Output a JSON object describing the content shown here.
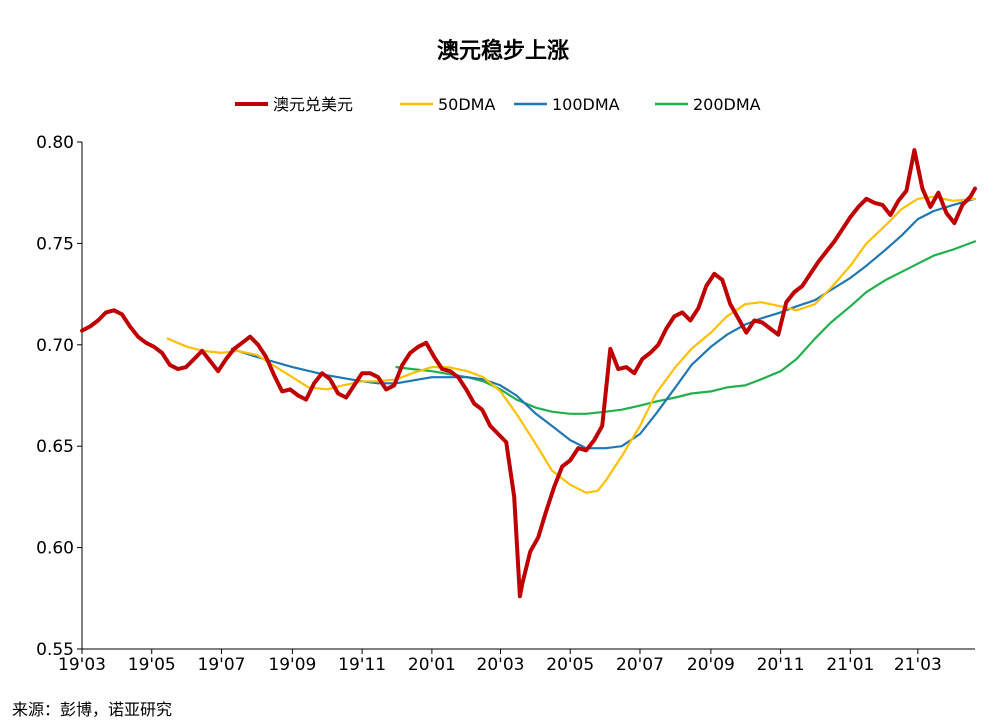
{
  "chart_data": {
    "type": "line",
    "title": "澳元稳步上涨",
    "xlabel": "",
    "ylabel": "",
    "ylim": [
      0.55,
      0.8
    ],
    "yticks": [
      "0.55",
      "0.60",
      "0.65",
      "0.70",
      "0.75",
      "0.80"
    ],
    "xlim": [
      "2019-03-01",
      "2021-04-20"
    ],
    "xticks": [
      {
        "label": "19'03",
        "date": "2019-03-01"
      },
      {
        "label": "19'05",
        "date": "2019-05-01"
      },
      {
        "label": "19'07",
        "date": "2019-07-01"
      },
      {
        "label": "19'09",
        "date": "2019-09-01"
      },
      {
        "label": "19'11",
        "date": "2019-11-01"
      },
      {
        "label": "20'01",
        "date": "2020-01-01"
      },
      {
        "label": "20'03",
        "date": "2020-03-01"
      },
      {
        "label": "20'05",
        "date": "2020-05-01"
      },
      {
        "label": "20'07",
        "date": "2020-07-01"
      },
      {
        "label": "20'09",
        "date": "2020-09-01"
      },
      {
        "label": "20'11",
        "date": "2020-11-01"
      },
      {
        "label": "21'01",
        "date": "2021-01-01"
      },
      {
        "label": "21'03",
        "date": "2021-03-01"
      }
    ],
    "legend_position": "top",
    "grid": false,
    "series": [
      {
        "name": "澳元兑美元",
        "color": "#c00000",
        "points": [
          [
            "2019-03-01",
            0.707
          ],
          [
            "2019-03-08",
            0.709
          ],
          [
            "2019-03-15",
            0.712
          ],
          [
            "2019-03-22",
            0.716
          ],
          [
            "2019-03-29",
            0.717
          ],
          [
            "2019-04-05",
            0.715
          ],
          [
            "2019-04-12",
            0.709
          ],
          [
            "2019-04-19",
            0.704
          ],
          [
            "2019-04-26",
            0.701
          ],
          [
            "2019-05-03",
            0.699
          ],
          [
            "2019-05-10",
            0.696
          ],
          [
            "2019-05-17",
            0.69
          ],
          [
            "2019-05-24",
            0.688
          ],
          [
            "2019-05-31",
            0.689
          ],
          [
            "2019-06-07",
            0.693
          ],
          [
            "2019-06-14",
            0.697
          ],
          [
            "2019-06-21",
            0.692
          ],
          [
            "2019-06-28",
            0.687
          ],
          [
            "2019-07-05",
            0.693
          ],
          [
            "2019-07-12",
            0.698
          ],
          [
            "2019-07-19",
            0.701
          ],
          [
            "2019-07-26",
            0.704
          ],
          [
            "2019-08-02",
            0.7
          ],
          [
            "2019-08-09",
            0.694
          ],
          [
            "2019-08-16",
            0.685
          ],
          [
            "2019-08-23",
            0.677
          ],
          [
            "2019-08-30",
            0.678
          ],
          [
            "2019-09-06",
            0.675
          ],
          [
            "2019-09-13",
            0.673
          ],
          [
            "2019-09-20",
            0.681
          ],
          [
            "2019-09-27",
            0.686
          ],
          [
            "2019-10-04",
            0.683
          ],
          [
            "2019-10-11",
            0.676
          ],
          [
            "2019-10-18",
            0.674
          ],
          [
            "2019-10-25",
            0.68
          ],
          [
            "2019-11-01",
            0.686
          ],
          [
            "2019-11-08",
            0.686
          ],
          [
            "2019-11-15",
            0.684
          ],
          [
            "2019-11-22",
            0.678
          ],
          [
            "2019-11-29",
            0.68
          ],
          [
            "2019-12-06",
            0.69
          ],
          [
            "2019-12-13",
            0.696
          ],
          [
            "2019-12-20",
            0.699
          ],
          [
            "2019-12-27",
            0.701
          ],
          [
            "2020-01-03",
            0.694
          ],
          [
            "2020-01-10",
            0.688
          ],
          [
            "2020-01-17",
            0.687
          ],
          [
            "2020-01-24",
            0.684
          ],
          [
            "2020-01-31",
            0.678
          ],
          [
            "2020-02-07",
            0.671
          ],
          [
            "2020-02-14",
            0.668
          ],
          [
            "2020-02-21",
            0.66
          ],
          [
            "2020-02-28",
            0.656
          ],
          [
            "2020-03-06",
            0.652
          ],
          [
            "2020-03-13",
            0.625
          ],
          [
            "2020-03-18",
            0.576
          ],
          [
            "2020-03-20",
            0.582
          ],
          [
            "2020-03-27",
            0.598
          ],
          [
            "2020-04-03",
            0.605
          ],
          [
            "2020-04-10",
            0.618
          ],
          [
            "2020-04-17",
            0.63
          ],
          [
            "2020-04-24",
            0.64
          ],
          [
            "2020-05-01",
            0.643
          ],
          [
            "2020-05-08",
            0.649
          ],
          [
            "2020-05-15",
            0.648
          ],
          [
            "2020-05-22",
            0.653
          ],
          [
            "2020-05-29",
            0.66
          ],
          [
            "2020-06-05",
            0.698
          ],
          [
            "2020-06-12",
            0.688
          ],
          [
            "2020-06-19",
            0.689
          ],
          [
            "2020-06-26",
            0.686
          ],
          [
            "2020-07-03",
            0.693
          ],
          [
            "2020-07-10",
            0.696
          ],
          [
            "2020-07-17",
            0.7
          ],
          [
            "2020-07-24",
            0.708
          ],
          [
            "2020-07-31",
            0.714
          ],
          [
            "2020-08-07",
            0.716
          ],
          [
            "2020-08-14",
            0.712
          ],
          [
            "2020-08-21",
            0.718
          ],
          [
            "2020-08-28",
            0.729
          ],
          [
            "2020-09-04",
            0.735
          ],
          [
            "2020-09-11",
            0.732
          ],
          [
            "2020-09-18",
            0.72
          ],
          [
            "2020-09-25",
            0.713
          ],
          [
            "2020-10-02",
            0.706
          ],
          [
            "2020-10-09",
            0.712
          ],
          [
            "2020-10-16",
            0.711
          ],
          [
            "2020-10-23",
            0.708
          ],
          [
            "2020-10-30",
            0.705
          ],
          [
            "2020-11-06",
            0.721
          ],
          [
            "2020-11-13",
            0.726
          ],
          [
            "2020-11-20",
            0.729
          ],
          [
            "2020-11-27",
            0.735
          ],
          [
            "2020-12-04",
            0.741
          ],
          [
            "2020-12-11",
            0.746
          ],
          [
            "2020-12-18",
            0.751
          ],
          [
            "2020-12-25",
            0.757
          ],
          [
            "2021-01-01",
            0.763
          ],
          [
            "2021-01-08",
            0.768
          ],
          [
            "2021-01-15",
            0.772
          ],
          [
            "2021-01-22",
            0.77
          ],
          [
            "2021-01-29",
            0.769
          ],
          [
            "2021-02-05",
            0.764
          ],
          [
            "2021-02-12",
            0.771
          ],
          [
            "2021-02-19",
            0.776
          ],
          [
            "2021-02-26",
            0.796
          ],
          [
            "2021-03-05",
            0.777
          ],
          [
            "2021-03-12",
            0.768
          ],
          [
            "2021-03-19",
            0.775
          ],
          [
            "2021-03-26",
            0.765
          ],
          [
            "2021-04-02",
            0.76
          ],
          [
            "2021-04-09",
            0.769
          ],
          [
            "2021-04-16",
            0.773
          ],
          [
            "2021-04-20",
            0.777
          ]
        ]
      },
      {
        "name": "50DMA",
        "color": "#ffc000",
        "points": [
          [
            "2019-05-15",
            0.703
          ],
          [
            "2019-06-01",
            0.699
          ],
          [
            "2019-06-15",
            0.697
          ],
          [
            "2019-07-01",
            0.696
          ],
          [
            "2019-07-15",
            0.697
          ],
          [
            "2019-08-01",
            0.695
          ],
          [
            "2019-08-15",
            0.69
          ],
          [
            "2019-09-01",
            0.684
          ],
          [
            "2019-09-15",
            0.679
          ],
          [
            "2019-10-01",
            0.678
          ],
          [
            "2019-10-15",
            0.68
          ],
          [
            "2019-11-01",
            0.682
          ],
          [
            "2019-11-15",
            0.682
          ],
          [
            "2019-12-01",
            0.683
          ],
          [
            "2019-12-15",
            0.686
          ],
          [
            "2020-01-01",
            0.689
          ],
          [
            "2020-01-15",
            0.689
          ],
          [
            "2020-02-01",
            0.687
          ],
          [
            "2020-02-15",
            0.684
          ],
          [
            "2020-03-01",
            0.677
          ],
          [
            "2020-03-15",
            0.666
          ],
          [
            "2020-04-01",
            0.651
          ],
          [
            "2020-04-15",
            0.638
          ],
          [
            "2020-05-01",
            0.631
          ],
          [
            "2020-05-15",
            0.627
          ],
          [
            "2020-05-25",
            0.628
          ],
          [
            "2020-06-01",
            0.633
          ],
          [
            "2020-06-15",
            0.645
          ],
          [
            "2020-07-01",
            0.66
          ],
          [
            "2020-07-15",
            0.676
          ],
          [
            "2020-08-01",
            0.689
          ],
          [
            "2020-08-15",
            0.698
          ],
          [
            "2020-09-01",
            0.706
          ],
          [
            "2020-09-15",
            0.714
          ],
          [
            "2020-10-01",
            0.72
          ],
          [
            "2020-10-15",
            0.721
          ],
          [
            "2020-11-01",
            0.719
          ],
          [
            "2020-11-15",
            0.717
          ],
          [
            "2020-12-01",
            0.72
          ],
          [
            "2020-12-15",
            0.728
          ],
          [
            "2021-01-01",
            0.739
          ],
          [
            "2021-01-15",
            0.75
          ],
          [
            "2021-02-01",
            0.759
          ],
          [
            "2021-02-15",
            0.767
          ],
          [
            "2021-03-01",
            0.772
          ],
          [
            "2021-03-15",
            0.773
          ],
          [
            "2021-04-01",
            0.771
          ],
          [
            "2021-04-20",
            0.772
          ]
        ]
      },
      {
        "name": "100DMA",
        "color": "#1f77b4",
        "points": [
          [
            "2019-07-10",
            0.698
          ],
          [
            "2019-08-01",
            0.694
          ],
          [
            "2019-09-01",
            0.689
          ],
          [
            "2019-10-01",
            0.685
          ],
          [
            "2019-11-01",
            0.682
          ],
          [
            "2019-11-15",
            0.681
          ],
          [
            "2019-12-01",
            0.681
          ],
          [
            "2020-01-01",
            0.684
          ],
          [
            "2020-02-01",
            0.684
          ],
          [
            "2020-02-15",
            0.683
          ],
          [
            "2020-03-01",
            0.68
          ],
          [
            "2020-03-15",
            0.675
          ],
          [
            "2020-04-01",
            0.666
          ],
          [
            "2020-04-15",
            0.66
          ],
          [
            "2020-05-01",
            0.653
          ],
          [
            "2020-05-15",
            0.649
          ],
          [
            "2020-06-01",
            0.649
          ],
          [
            "2020-06-15",
            0.65
          ],
          [
            "2020-07-01",
            0.656
          ],
          [
            "2020-07-15",
            0.666
          ],
          [
            "2020-08-01",
            0.679
          ],
          [
            "2020-08-15",
            0.69
          ],
          [
            "2020-09-01",
            0.699
          ],
          [
            "2020-09-15",
            0.705
          ],
          [
            "2020-10-01",
            0.71
          ],
          [
            "2020-10-15",
            0.713
          ],
          [
            "2020-11-01",
            0.716
          ],
          [
            "2020-11-15",
            0.719
          ],
          [
            "2020-12-01",
            0.722
          ],
          [
            "2020-12-15",
            0.727
          ],
          [
            "2021-01-01",
            0.733
          ],
          [
            "2021-01-15",
            0.739
          ],
          [
            "2021-02-01",
            0.747
          ],
          [
            "2021-02-15",
            0.754
          ],
          [
            "2021-03-01",
            0.762
          ],
          [
            "2021-03-15",
            0.766
          ],
          [
            "2021-04-01",
            0.769
          ],
          [
            "2021-04-20",
            0.772
          ]
        ]
      },
      {
        "name": "200DMA",
        "color": "#22b04c",
        "points": [
          [
            "2019-12-01",
            0.689
          ],
          [
            "2019-12-15",
            0.688
          ],
          [
            "2020-01-01",
            0.687
          ],
          [
            "2020-02-01",
            0.684
          ],
          [
            "2020-02-15",
            0.682
          ],
          [
            "2020-03-01",
            0.678
          ],
          [
            "2020-03-15",
            0.673
          ],
          [
            "2020-04-01",
            0.669
          ],
          [
            "2020-04-15",
            0.667
          ],
          [
            "2020-05-01",
            0.666
          ],
          [
            "2020-05-15",
            0.666
          ],
          [
            "2020-06-01",
            0.667
          ],
          [
            "2020-06-15",
            0.668
          ],
          [
            "2020-07-01",
            0.67
          ],
          [
            "2020-07-15",
            0.672
          ],
          [
            "2020-08-01",
            0.674
          ],
          [
            "2020-08-15",
            0.676
          ],
          [
            "2020-09-01",
            0.677
          ],
          [
            "2020-09-15",
            0.679
          ],
          [
            "2020-10-01",
            0.68
          ],
          [
            "2020-10-15",
            0.683
          ],
          [
            "2020-11-01",
            0.687
          ],
          [
            "2020-11-15",
            0.693
          ],
          [
            "2020-12-01",
            0.703
          ],
          [
            "2020-12-15",
            0.711
          ],
          [
            "2021-01-01",
            0.719
          ],
          [
            "2021-01-15",
            0.726
          ],
          [
            "2021-02-01",
            0.732
          ],
          [
            "2021-02-15",
            0.736
          ],
          [
            "2021-03-01",
            0.74
          ],
          [
            "2021-03-15",
            0.744
          ],
          [
            "2021-04-01",
            0.747
          ],
          [
            "2021-04-20",
            0.751
          ]
        ]
      }
    ]
  },
  "source_note": "来源：彭博，诺亚研究"
}
